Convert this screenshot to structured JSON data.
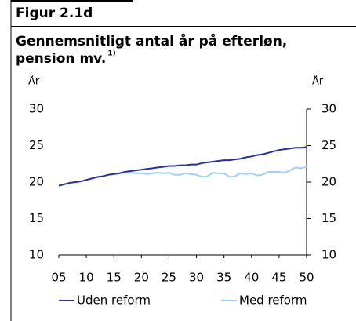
{
  "chart_data": {
    "type": "line",
    "figure_label": "Figur 2.1d",
    "title": [
      "Gennemsnitligt antal år på efterløn,",
      "pension mv."
    ],
    "title_note": "1)",
    "y_label": "År",
    "y2_label": "År",
    "x": [
      5,
      6,
      7,
      8,
      9,
      10,
      11,
      12,
      13,
      14,
      15,
      16,
      17,
      18,
      19,
      20,
      21,
      22,
      23,
      24,
      25,
      26,
      27,
      28,
      29,
      30,
      31,
      32,
      33,
      34,
      35,
      36,
      37,
      38,
      39,
      40,
      41,
      42,
      43,
      44,
      45,
      46,
      47,
      48,
      49,
      50
    ],
    "series": [
      {
        "name": "Uden reform",
        "color": "#2b2f9c",
        "values": [
          19.5,
          19.7,
          19.9,
          20.0,
          20.1,
          20.3,
          20.5,
          20.7,
          20.8,
          21.0,
          21.1,
          21.2,
          21.4,
          21.5,
          21.6,
          21.7,
          21.8,
          21.9,
          22.0,
          22.1,
          22.2,
          22.2,
          22.3,
          22.3,
          22.4,
          22.4,
          22.6,
          22.7,
          22.8,
          22.9,
          23.0,
          23.0,
          23.1,
          23.2,
          23.4,
          23.5,
          23.7,
          23.8,
          24.0,
          24.2,
          24.4,
          24.5,
          24.6,
          24.7,
          24.7,
          24.8
        ]
      },
      {
        "name": "Med reform",
        "color": "#9ecfff",
        "values": [
          19.5,
          19.7,
          19.9,
          20.0,
          20.1,
          20.3,
          20.5,
          20.7,
          20.8,
          21.0,
          21.1,
          21.2,
          21.3,
          21.3,
          21.2,
          21.2,
          21.1,
          21.2,
          21.3,
          21.2,
          21.3,
          21.0,
          21.0,
          21.2,
          21.1,
          21.0,
          20.7,
          20.8,
          21.3,
          21.2,
          21.2,
          20.7,
          20.8,
          21.2,
          21.1,
          21.2,
          20.9,
          21.0,
          21.4,
          21.4,
          21.4,
          21.3,
          21.6,
          22.0,
          21.9,
          22.1
        ]
      }
    ],
    "xlim": [
      5,
      50
    ],
    "xticks": [
      {
        "value": 5,
        "label": "05"
      },
      10,
      15,
      20,
      25,
      30,
      35,
      40,
      45,
      50
    ],
    "ylim": [
      10,
      30
    ],
    "yticks": [
      10,
      15,
      20,
      25,
      30
    ],
    "y2lim": [
      10,
      30
    ],
    "y2ticks": [
      10,
      15,
      20,
      25,
      30
    ]
  }
}
